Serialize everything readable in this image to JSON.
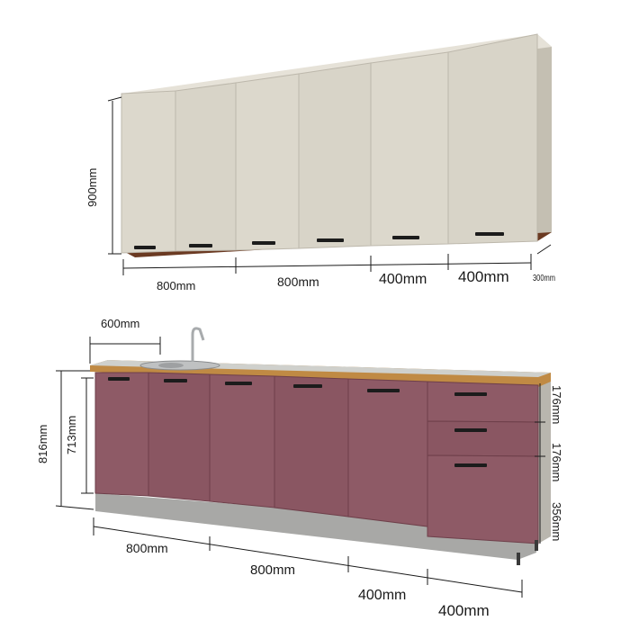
{
  "upper_unit": {
    "height_label": "900mm",
    "widths": [
      "800mm",
      "800mm",
      "400mm",
      "400mm"
    ],
    "depth_label": "300mm",
    "colors": {
      "front": "#dcd8cc",
      "side": "#c9c4b8",
      "bottom_edge": "#6b3a22",
      "handle": "#1c1c1c"
    }
  },
  "lower_unit": {
    "sink_depth_label": "600mm",
    "total_height_label": "816mm",
    "cabinet_height_label": "713mm",
    "drawer_heights": [
      "176mm",
      "176mm",
      "356mm"
    ],
    "widths": [
      "800mm",
      "800mm",
      "400mm",
      "400mm"
    ],
    "colors": {
      "front": "#8e5a66",
      "countertop": "#c08a44",
      "plinth": "#a8a8a6",
      "handle": "#1c1c1c"
    }
  }
}
